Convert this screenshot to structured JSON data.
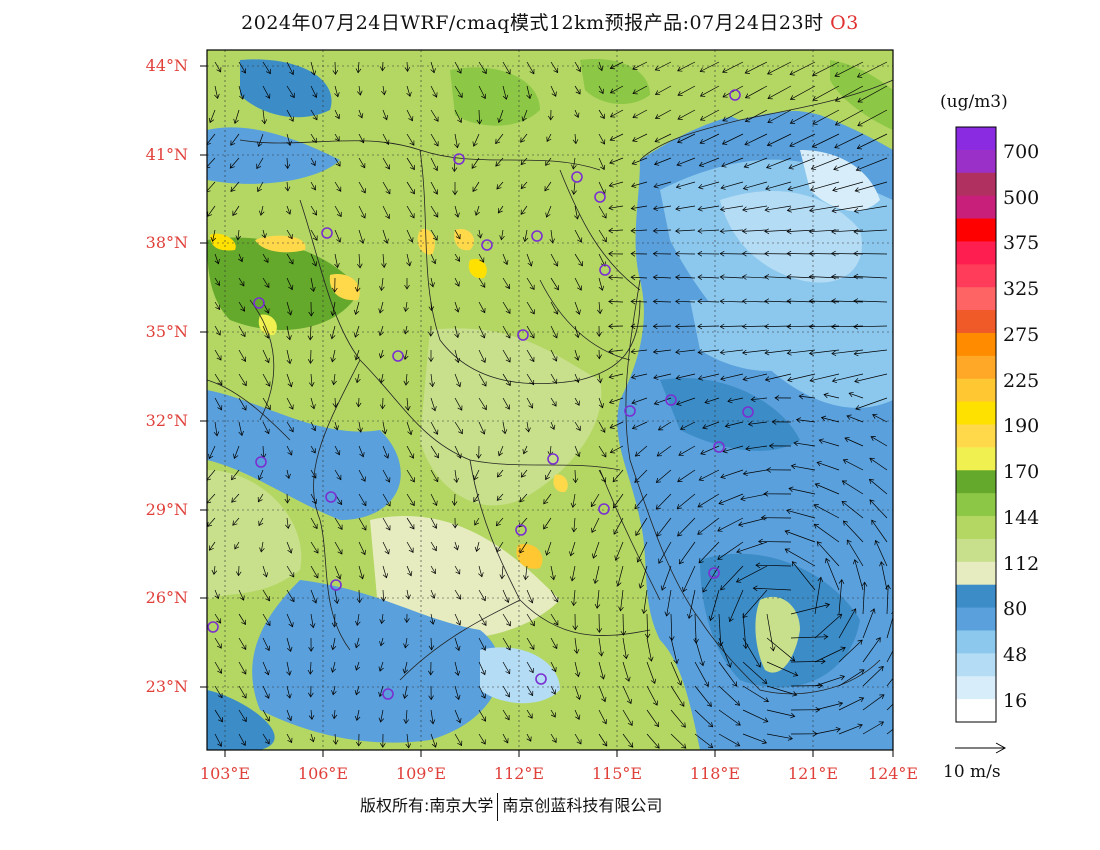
{
  "title": {
    "main": "2024年07月24日WRF/cmaq模式12km预报产品:07月24日23时",
    "species": "O3"
  },
  "axes": {
    "lat_labels": [
      "44°N",
      "41°N",
      "38°N",
      "35°N",
      "32°N",
      "29°N",
      "26°N",
      "23°N"
    ],
    "lon_labels": [
      "103°E",
      "106°E",
      "109°E",
      "112°E",
      "115°E",
      "118°E",
      "121°E",
      "124°E"
    ]
  },
  "colorbar": {
    "unit": "(ug/m3)",
    "labels": [
      "700",
      "500",
      "375",
      "325",
      "275",
      "225",
      "190",
      "170",
      "144",
      "112",
      "80",
      "48",
      "16"
    ],
    "colors": [
      "#8a2be2",
      "#9b30c8",
      "#b03060",
      "#c8207a",
      "#ff0000",
      "#ff1e50",
      "#ff3c5a",
      "#ff6464",
      "#f05a28",
      "#ff8c00",
      "#ffa828",
      "#ffc832",
      "#ffe100",
      "#ffd94a",
      "#f0f050",
      "#64a82c",
      "#8cc846",
      "#b4d764",
      "#c8e08c",
      "#e6ecc0",
      "#3c8cc8",
      "#5aa0dc",
      "#8cc8ee",
      "#b4dcf5",
      "#d7eefa",
      "#ffffff"
    ]
  },
  "wind_legend": {
    "label": "10 m/s"
  },
  "footer": {
    "left": "版权所有:南京大学",
    "right": "南京创蓝科技有限公司"
  }
}
